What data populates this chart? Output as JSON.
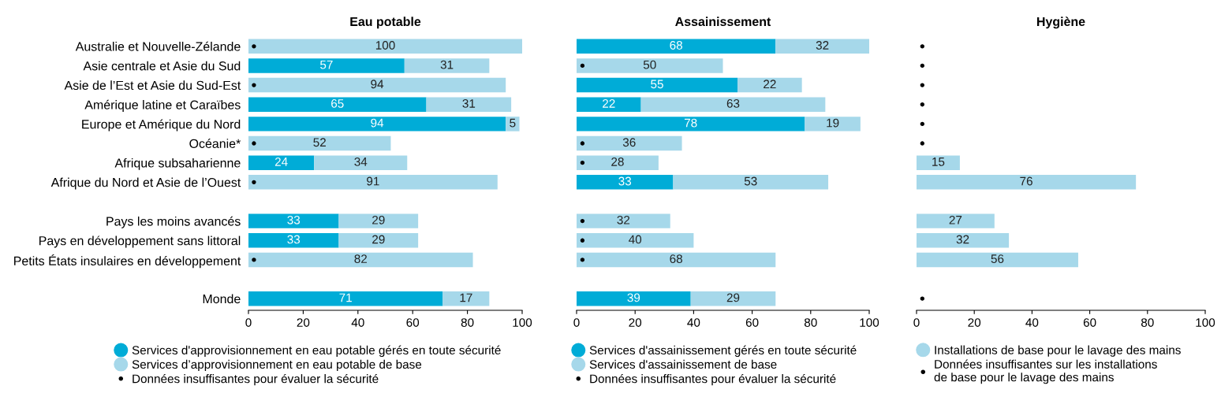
{
  "chart_data": [
    {
      "type": "bar",
      "orientation": "horizontal",
      "stacked": true,
      "title": "Eau potable",
      "categories": [
        "Australie et Nouvelle-Zélande",
        "Asie centrale et Asie du Sud",
        "Asie de l’Est et Asie du Sud-Est",
        "Amérique latine et Caraïbes",
        "Europe et Amérique du Nord",
        "Océanie*",
        "Afrique subsaharienne",
        "Afrique du Nord et Asie de l’Ouest",
        null,
        "Pays les moins avancés",
        "Pays en développement sans littoral",
        "Petits États insulaires en développement",
        null,
        "Monde"
      ],
      "xlim": [
        0,
        100
      ],
      "xticks": [
        0,
        20,
        40,
        60,
        80,
        100
      ],
      "grid": false,
      "legend": "bottom",
      "series": [
        {
          "name": "Services d'approvisionnement en eau potable gérés en toute sécurité",
          "color": "#00acd7",
          "values": [
            null,
            57,
            null,
            65,
            94,
            null,
            24,
            null,
            null,
            33,
            33,
            null,
            null,
            71
          ],
          "value_labels": [
            null,
            "57",
            null,
            "65",
            "94",
            null,
            "24",
            null,
            null,
            "33",
            "33",
            null,
            null,
            "71"
          ]
        },
        {
          "name": "Services d’approvisionnement en eau potable de base",
          "color": "#a6d8ea",
          "values": [
            100,
            31,
            94,
            31,
            5,
            52,
            34,
            91,
            null,
            29,
            29,
            82,
            null,
            17
          ],
          "value_labels": [
            "100",
            "31",
            "94",
            "31",
            "5",
            "52",
            "34",
            "91",
            null,
            "29",
            "29",
            "82",
            null,
            "17"
          ]
        },
        {
          "name": "Données insuffisantes pour évaluer la sécurité",
          "type": "scatter",
          "marker": "circle",
          "color": "#000000",
          "values": [
            2,
            null,
            2,
            null,
            null,
            2,
            null,
            2,
            null,
            null,
            null,
            2,
            null,
            null
          ]
        }
      ]
    },
    {
      "type": "bar",
      "orientation": "horizontal",
      "stacked": true,
      "title": "Assainissement",
      "tick_labels": "x",
      "categories": [
        null,
        null,
        null,
        null,
        null,
        null,
        null,
        null,
        null,
        null,
        null,
        null,
        null,
        null
      ],
      "xlim": [
        0,
        100
      ],
      "xticks": [
        0,
        20,
        40,
        60,
        80,
        100
      ],
      "grid": false,
      "legend": "bottom",
      "series": [
        {
          "name": "Services d'assainissement gérés en toute sécurité",
          "color": "#00acd7",
          "values": [
            68,
            null,
            55,
            22,
            78,
            null,
            null,
            33,
            null,
            null,
            null,
            null,
            null,
            39
          ],
          "value_labels": [
            "68",
            null,
            "55",
            "22",
            "78",
            null,
            null,
            "33",
            null,
            null,
            null,
            null,
            null,
            "39"
          ]
        },
        {
          "name": "Services d'assainissement de base",
          "color": "#a6d8ea",
          "values": [
            32,
            50,
            22,
            63,
            19,
            36,
            28,
            53,
            null,
            32,
            40,
            68,
            null,
            29
          ],
          "value_labels": [
            "32",
            "50",
            "22",
            "63",
            "19",
            "36",
            "28",
            "53",
            null,
            "32",
            "40",
            "68",
            null,
            "29"
          ]
        },
        {
          "name": "Données insuffisantes pour évaluer la sécurité",
          "type": "scatter",
          "marker": "circle",
          "color": "#000000",
          "values": [
            null,
            2,
            null,
            null,
            null,
            2,
            2,
            null,
            null,
            2,
            2,
            2,
            null,
            null
          ]
        }
      ]
    },
    {
      "type": "bar",
      "orientation": "horizontal",
      "stacked": true,
      "title": "Hygiène",
      "tick_labels": "x",
      "categories": [
        null,
        null,
        null,
        null,
        null,
        null,
        null,
        null,
        null,
        null,
        null,
        null,
        null,
        null
      ],
      "xlim": [
        0,
        100
      ],
      "xticks": [
        0,
        20,
        40,
        60,
        80,
        100
      ],
      "grid": false,
      "legend": "bottom",
      "series": [
        {
          "name": "Installations de base pour le lavage des mains",
          "color": "#a6d8ea",
          "values": [
            null,
            null,
            null,
            null,
            null,
            null,
            15,
            76,
            null,
            27,
            32,
            56,
            null,
            null
          ],
          "value_labels": [
            null,
            null,
            null,
            null,
            null,
            null,
            "15",
            "76",
            null,
            "27",
            "32",
            "56",
            null,
            null
          ]
        },
        {
          "name": "Données insuffisantes sur les installations\nde base pour le lavage des mains",
          "type": "scatter",
          "marker": "circle",
          "color": "#000000",
          "values": [
            2,
            2,
            2,
            2,
            2,
            2,
            null,
            null,
            null,
            null,
            null,
            null,
            null,
            2
          ]
        }
      ]
    }
  ]
}
